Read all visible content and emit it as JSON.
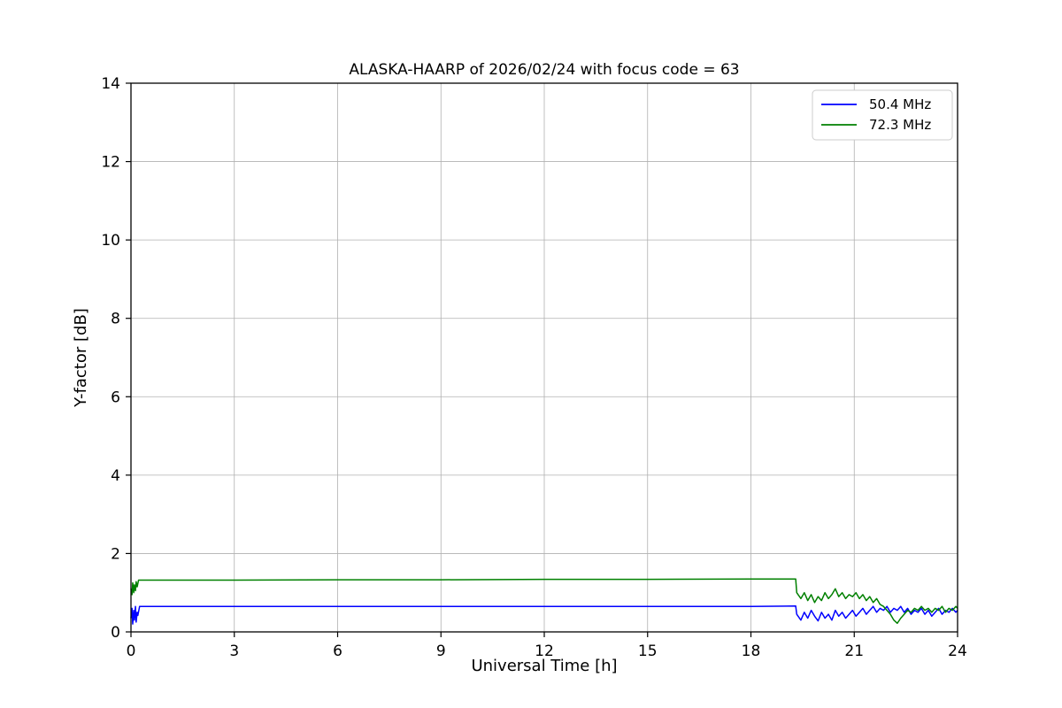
{
  "figure": {
    "background": "#ffffff",
    "axis_color": "#000000",
    "grid_color": "#b0b0b0",
    "legend_border_color": "#cccccc"
  },
  "chart_data": {
    "type": "line",
    "title": "ALASKA-HAARP of 2026/02/24 with focus code = 63",
    "xlabel": "Universal Time [h]",
    "ylabel": "Y-factor [dB]",
    "xlim": [
      0,
      24
    ],
    "ylim": [
      0,
      14
    ],
    "xticks": [
      0,
      3,
      6,
      9,
      12,
      15,
      18,
      21,
      24
    ],
    "yticks": [
      0,
      2,
      4,
      6,
      8,
      10,
      12,
      14
    ],
    "grid": true,
    "legend_position": "upper right",
    "series": [
      {
        "name": "50.4 MHz",
        "color": "#0000ff",
        "points": [
          [
            0,
            0.35
          ],
          [
            0.03,
            0.6
          ],
          [
            0.05,
            0.2
          ],
          [
            0.08,
            0.55
          ],
          [
            0.1,
            0.3
          ],
          [
            0.13,
            0.65
          ],
          [
            0.15,
            0.25
          ],
          [
            0.18,
            0.5
          ],
          [
            0.2,
            0.42
          ],
          [
            0.25,
            0.65
          ],
          [
            1,
            0.65
          ],
          [
            3,
            0.65
          ],
          [
            6,
            0.65
          ],
          [
            9,
            0.65
          ],
          [
            12,
            0.65
          ],
          [
            15,
            0.65
          ],
          [
            18,
            0.65
          ],
          [
            19.3,
            0.66
          ],
          [
            19.33,
            0.45
          ],
          [
            19.45,
            0.3
          ],
          [
            19.55,
            0.5
          ],
          [
            19.65,
            0.35
          ],
          [
            19.75,
            0.55
          ],
          [
            19.85,
            0.4
          ],
          [
            19.95,
            0.28
          ],
          [
            20.05,
            0.5
          ],
          [
            20.15,
            0.35
          ],
          [
            20.25,
            0.45
          ],
          [
            20.35,
            0.3
          ],
          [
            20.45,
            0.55
          ],
          [
            20.55,
            0.4
          ],
          [
            20.65,
            0.5
          ],
          [
            20.75,
            0.35
          ],
          [
            20.85,
            0.45
          ],
          [
            20.95,
            0.55
          ],
          [
            21.05,
            0.4
          ],
          [
            21.15,
            0.5
          ],
          [
            21.25,
            0.6
          ],
          [
            21.35,
            0.45
          ],
          [
            21.45,
            0.55
          ],
          [
            21.55,
            0.65
          ],
          [
            21.65,
            0.5
          ],
          [
            21.75,
            0.6
          ],
          [
            21.85,
            0.55
          ],
          [
            21.95,
            0.65
          ],
          [
            22.05,
            0.5
          ],
          [
            22.15,
            0.6
          ],
          [
            22.25,
            0.55
          ],
          [
            22.35,
            0.65
          ],
          [
            22.45,
            0.5
          ],
          [
            22.55,
            0.6
          ],
          [
            22.65,
            0.45
          ],
          [
            22.75,
            0.55
          ],
          [
            22.85,
            0.5
          ],
          [
            22.95,
            0.6
          ],
          [
            23.05,
            0.45
          ],
          [
            23.15,
            0.55
          ],
          [
            23.25,
            0.4
          ],
          [
            23.35,
            0.5
          ],
          [
            23.45,
            0.6
          ],
          [
            23.55,
            0.45
          ],
          [
            23.65,
            0.55
          ],
          [
            23.75,
            0.5
          ],
          [
            23.85,
            0.6
          ],
          [
            23.95,
            0.5
          ],
          [
            24,
            0.55
          ]
        ]
      },
      {
        "name": "72.3 MHz",
        "color": "#008000",
        "points": [
          [
            0,
            1.1
          ],
          [
            0.03,
            0.95
          ],
          [
            0.05,
            1.25
          ],
          [
            0.08,
            1.0
          ],
          [
            0.1,
            1.2
          ],
          [
            0.13,
            1.05
          ],
          [
            0.15,
            1.28
          ],
          [
            0.18,
            1.15
          ],
          [
            0.22,
            1.32
          ],
          [
            1,
            1.32
          ],
          [
            3,
            1.32
          ],
          [
            6,
            1.33
          ],
          [
            9,
            1.33
          ],
          [
            12,
            1.34
          ],
          [
            15,
            1.34
          ],
          [
            18,
            1.35
          ],
          [
            19.3,
            1.35
          ],
          [
            19.33,
            1.0
          ],
          [
            19.45,
            0.85
          ],
          [
            19.55,
            1.0
          ],
          [
            19.65,
            0.8
          ],
          [
            19.75,
            0.95
          ],
          [
            19.85,
            0.75
          ],
          [
            19.95,
            0.9
          ],
          [
            20.05,
            0.8
          ],
          [
            20.15,
            1.0
          ],
          [
            20.25,
            0.85
          ],
          [
            20.35,
            0.95
          ],
          [
            20.45,
            1.1
          ],
          [
            20.55,
            0.9
          ],
          [
            20.65,
            1.0
          ],
          [
            20.75,
            0.85
          ],
          [
            20.85,
            0.95
          ],
          [
            20.95,
            0.9
          ],
          [
            21.05,
            1.0
          ],
          [
            21.15,
            0.85
          ],
          [
            21.25,
            0.95
          ],
          [
            21.35,
            0.8
          ],
          [
            21.45,
            0.9
          ],
          [
            21.55,
            0.75
          ],
          [
            21.65,
            0.85
          ],
          [
            21.75,
            0.7
          ],
          [
            21.85,
            0.65
          ],
          [
            21.95,
            0.55
          ],
          [
            22.05,
            0.45
          ],
          [
            22.15,
            0.3
          ],
          [
            22.25,
            0.22
          ],
          [
            22.35,
            0.35
          ],
          [
            22.45,
            0.45
          ],
          [
            22.55,
            0.55
          ],
          [
            22.65,
            0.5
          ],
          [
            22.75,
            0.6
          ],
          [
            22.85,
            0.55
          ],
          [
            22.95,
            0.65
          ],
          [
            23.05,
            0.55
          ],
          [
            23.15,
            0.6
          ],
          [
            23.25,
            0.5
          ],
          [
            23.35,
            0.6
          ],
          [
            23.45,
            0.55
          ],
          [
            23.55,
            0.65
          ],
          [
            23.65,
            0.5
          ],
          [
            23.75,
            0.6
          ],
          [
            23.85,
            0.55
          ],
          [
            23.95,
            0.65
          ],
          [
            24,
            0.6
          ]
        ]
      }
    ]
  }
}
